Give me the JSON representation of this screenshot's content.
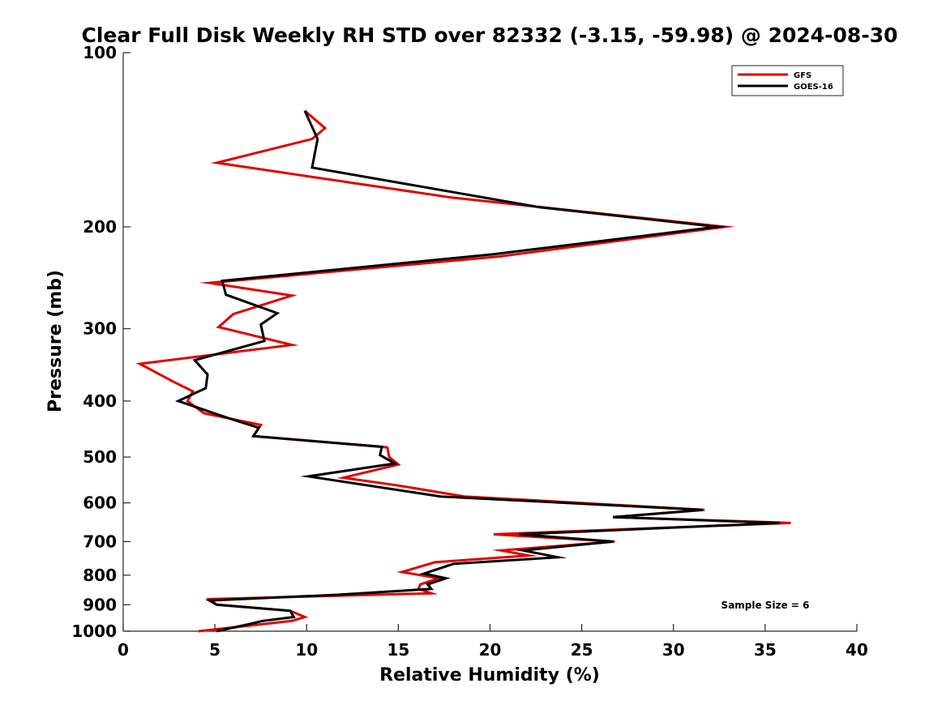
{
  "chart_data": {
    "type": "line",
    "title": "Clear Full Disk Weekly RH STD over 82332 (-3.15, -59.98) @ 2024-08-30",
    "xlabel": "Relative Humidity (%)",
    "ylabel": "Pressure (mb)",
    "xlim": [
      0,
      40
    ],
    "ylim": [
      100,
      1000
    ],
    "y_scale": "log",
    "y_reversed": true,
    "grid": false,
    "legend_position": "top-right",
    "x_ticks": [
      "0",
      "5",
      "10",
      "15",
      "20",
      "25",
      "30",
      "35",
      "40"
    ],
    "y_ticks": [
      "100",
      "200",
      "300",
      "400",
      "500",
      "600",
      "700",
      "800",
      "900",
      "1000"
    ],
    "annotation": "Sample Size = 6",
    "series": [
      {
        "name": "GFS",
        "color": "#e00000",
        "points": [
          [
            9.9,
            126
          ],
          [
            11.0,
            135
          ],
          [
            10.3,
            141
          ],
          [
            5.1,
            155
          ],
          [
            17.9,
            178
          ],
          [
            32.8,
            200
          ],
          [
            20.5,
            225
          ],
          [
            4.7,
            250
          ],
          [
            9.2,
            263
          ],
          [
            6.0,
            283
          ],
          [
            5.2,
            298
          ],
          [
            9.2,
            320
          ],
          [
            0.9,
            345
          ],
          [
            2.7,
            370
          ],
          [
            3.8,
            385
          ],
          [
            3.5,
            400
          ],
          [
            4.4,
            420
          ],
          [
            7.5,
            440
          ],
          [
            7.1,
            460
          ],
          [
            14.4,
            481
          ],
          [
            14.5,
            500
          ],
          [
            15.0,
            515
          ],
          [
            12.0,
            543
          ],
          [
            15.0,
            560
          ],
          [
            18.6,
            585
          ],
          [
            31.7,
            617
          ],
          [
            26.7,
            635
          ],
          [
            36.4,
            650
          ],
          [
            20.2,
            680
          ],
          [
            26.8,
            700
          ],
          [
            20.6,
            725
          ],
          [
            22.1,
            740
          ],
          [
            17.0,
            760
          ],
          [
            15.2,
            790
          ],
          [
            17.2,
            810
          ],
          [
            16.2,
            830
          ],
          [
            16.1,
            845
          ],
          [
            16.8,
            860
          ],
          [
            4.7,
            880
          ],
          [
            5.1,
            900
          ],
          [
            9.1,
            922
          ],
          [
            9.9,
            945
          ],
          [
            9.2,
            960
          ],
          [
            4.1,
            1000
          ]
        ]
      },
      {
        "name": "GOES-16",
        "color": "#000000",
        "points": [
          [
            9.9,
            126
          ],
          [
            10.6,
            141
          ],
          [
            10.3,
            158
          ],
          [
            22.7,
            185
          ],
          [
            32.4,
            200
          ],
          [
            20.2,
            223
          ],
          [
            5.4,
            248
          ],
          [
            5.6,
            262
          ],
          [
            8.4,
            282
          ],
          [
            7.5,
            295
          ],
          [
            7.7,
            315
          ],
          [
            3.9,
            340
          ],
          [
            4.6,
            360
          ],
          [
            4.5,
            380
          ],
          [
            3.0,
            400
          ],
          [
            5.9,
            430
          ],
          [
            7.4,
            445
          ],
          [
            7.1,
            460
          ],
          [
            14.1,
            480
          ],
          [
            14.0,
            496
          ],
          [
            14.8,
            513
          ],
          [
            10.1,
            540
          ],
          [
            17.3,
            585
          ],
          [
            31.6,
            617
          ],
          [
            26.7,
            635
          ],
          [
            35.8,
            650
          ],
          [
            21.6,
            680
          ],
          [
            26.7,
            700
          ],
          [
            21.8,
            725
          ],
          [
            23.7,
            745
          ],
          [
            18.0,
            765
          ],
          [
            16.4,
            795
          ],
          [
            17.6,
            810
          ],
          [
            16.6,
            830
          ],
          [
            16.8,
            845
          ],
          [
            11.7,
            865
          ],
          [
            4.7,
            885
          ],
          [
            5.1,
            900
          ],
          [
            9.1,
            922
          ],
          [
            9.3,
            945
          ],
          [
            7.6,
            960
          ],
          [
            7.0,
            970
          ],
          [
            5.1,
            1000
          ]
        ]
      }
    ]
  }
}
